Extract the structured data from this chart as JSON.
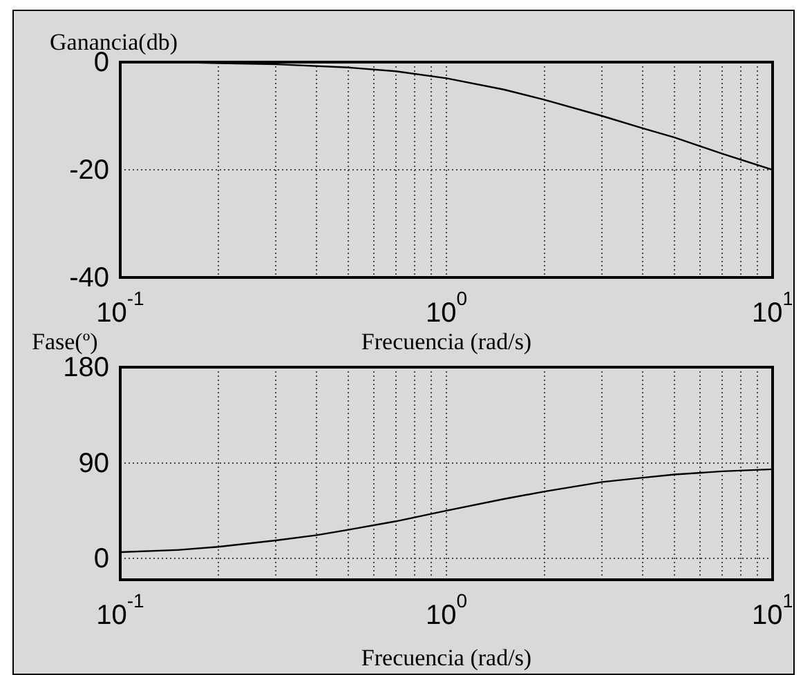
{
  "chart_data": [
    {
      "type": "line",
      "ylabel": "Ganancia(db)",
      "xlabel": "Frecuencia (rad/s)",
      "log": "x",
      "grid": true,
      "legend": false,
      "marker": "none",
      "x": [
        0.1,
        0.15,
        0.2,
        0.3,
        0.5,
        0.7,
        1,
        1.5,
        2,
        3,
        4,
        5,
        7,
        10
      ],
      "series": [
        {
          "color": "#000000",
          "values": [
            0,
            0,
            -0.2,
            -0.4,
            -1,
            -1.7,
            -3,
            -5.1,
            -7,
            -10,
            -12.3,
            -14,
            -17,
            -20
          ]
        }
      ],
      "xlim": [
        0.1,
        10
      ],
      "ylim": [
        -40,
        0
      ],
      "yticks": [
        -40,
        -20,
        0
      ],
      "xticks": [
        {
          "value": 0.1,
          "label": "10$^{-1}$"
        },
        {
          "value": 0.2,
          "label": null
        },
        {
          "value": 0.3,
          "label": null
        },
        {
          "value": 0.4,
          "label": null
        },
        {
          "value": 0.5,
          "label": null
        },
        {
          "value": 0.6,
          "label": null
        },
        {
          "value": 0.7,
          "label": null
        },
        {
          "value": 0.8,
          "label": null
        },
        {
          "value": 0.9,
          "label": null
        },
        {
          "value": 1,
          "label": "10$^{0}$"
        },
        {
          "value": 2,
          "label": null
        },
        {
          "value": 3,
          "label": null
        },
        {
          "value": 4,
          "label": null
        },
        {
          "value": 5,
          "label": null
        },
        {
          "value": 6,
          "label": null
        },
        {
          "value": 7,
          "label": null
        },
        {
          "value": 8,
          "label": null
        },
        {
          "value": 9,
          "label": null
        },
        {
          "value": 10,
          "label": "10$^{1}$"
        }
      ]
    },
    {
      "type": "line",
      "ylabel": "Fase(º)",
      "xlabel": "Frecuencia (rad/s)",
      "log": "x",
      "grid": true,
      "legend": false,
      "marker": "none",
      "x": [
        0.1,
        0.15,
        0.2,
        0.3,
        0.4,
        0.5,
        0.7,
        1,
        1.5,
        2,
        3,
        4,
        5,
        7,
        10
      ],
      "series": [
        {
          "color": "#000000",
          "values": [
            6,
            8,
            11,
            17,
            22,
            27,
            35,
            45,
            56,
            63,
            72,
            76,
            79,
            82,
            84
          ]
        }
      ],
      "xlim": [
        0.1,
        10
      ],
      "ylim": [
        -20,
        180
      ],
      "yticks": [
        0,
        90,
        180
      ],
      "xticks": [
        {
          "value": 0.1,
          "label": "10$^{-1}$"
        },
        {
          "value": 0.2,
          "label": null
        },
        {
          "value": 0.3,
          "label": null
        },
        {
          "value": 0.4,
          "label": null
        },
        {
          "value": 0.5,
          "label": null
        },
        {
          "value": 0.6,
          "label": null
        },
        {
          "value": 0.7,
          "label": null
        },
        {
          "value": 0.8,
          "label": null
        },
        {
          "value": 0.9,
          "label": null
        },
        {
          "value": 1,
          "label": "10$^{0}$"
        },
        {
          "value": 2,
          "label": null
        },
        {
          "value": 3,
          "label": null
        },
        {
          "value": 4,
          "label": null
        },
        {
          "value": 5,
          "label": null
        },
        {
          "value": 6,
          "label": null
        },
        {
          "value": 7,
          "label": null
        },
        {
          "value": 8,
          "label": null
        },
        {
          "value": 9,
          "label": null
        },
        {
          "value": 10,
          "label": "10$^{1}$"
        }
      ]
    }
  ]
}
